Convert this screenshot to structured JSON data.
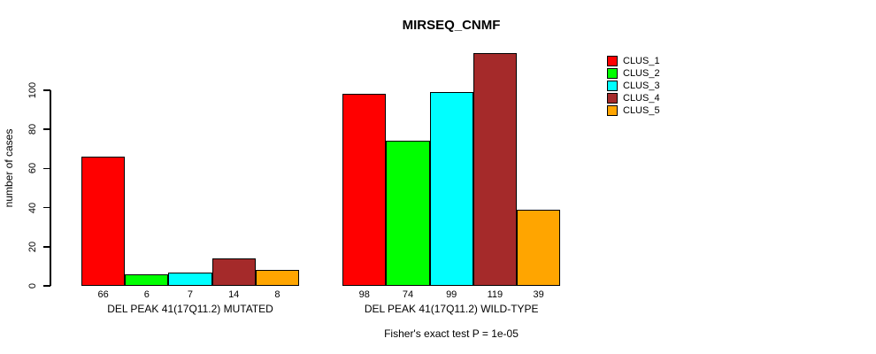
{
  "chart_data": {
    "type": "bar",
    "title": "MIRSEQ_CNMF",
    "ylabel": "number of cases",
    "xlabel": "",
    "categories": [
      "DEL PEAK 41(17Q11.2) MUTATED",
      "DEL PEAK 41(17Q11.2) WILD-TYPE"
    ],
    "series": [
      {
        "name": "CLUS_1",
        "color": "#FF0000",
        "values": [
          66,
          98
        ]
      },
      {
        "name": "CLUS_2",
        "color": "#00FF00",
        "values": [
          6,
          74
        ]
      },
      {
        "name": "CLUS_3",
        "color": "#00FFFF",
        "values": [
          7,
          99
        ]
      },
      {
        "name": "CLUS_4",
        "color": "#A52A2A",
        "values": [
          14,
          119
        ]
      },
      {
        "name": "CLUS_5",
        "color": "#FFA500",
        "values": [
          8,
          39
        ]
      }
    ],
    "bar_value_labels": [
      [
        66,
        6,
        7,
        14,
        8
      ],
      [
        98,
        74,
        99,
        119,
        39
      ]
    ],
    "yticks": [
      0,
      20,
      40,
      60,
      80,
      100
    ],
    "ylim": [
      0,
      120
    ],
    "grid": false,
    "legend_position": "top-right",
    "annotation": "Fisher's exact test P = 1e-05",
    "axis_color": "#000000",
    "bar_border_color": "#000000",
    "background_color": "#FFFFFF"
  }
}
